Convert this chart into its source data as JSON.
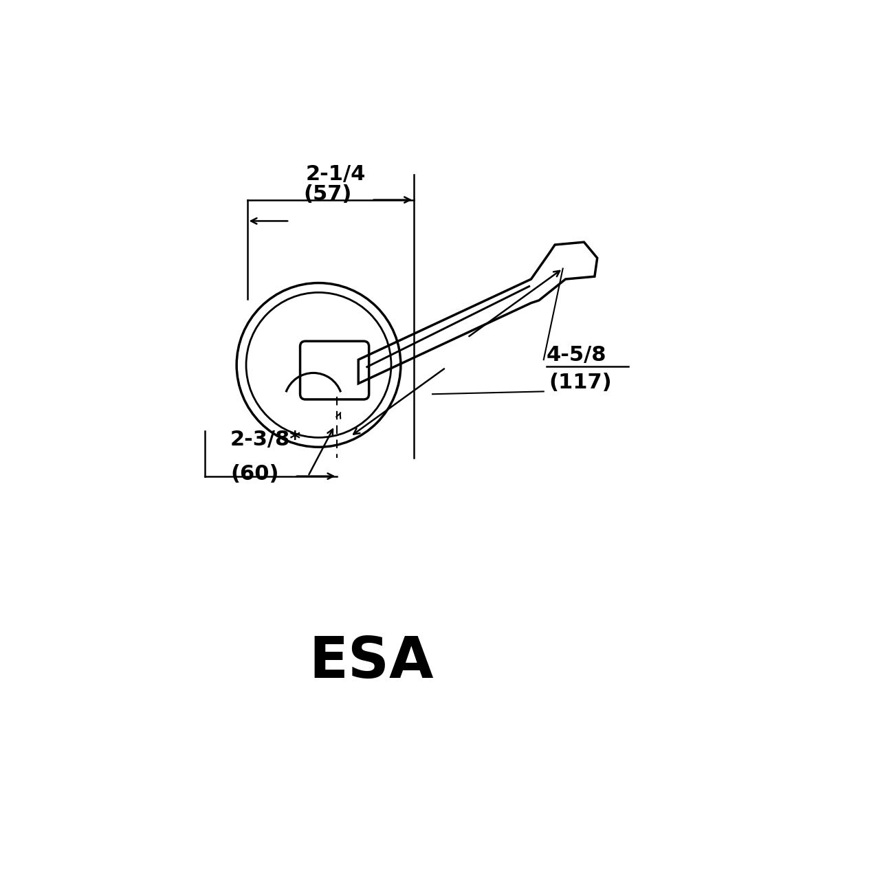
{
  "bg_color": "#ffffff",
  "line_color": "#000000",
  "esa_label": "ESA",
  "esa_fontsize": 60,
  "dim1_label": "2-1/4",
  "dim1_sub": "(57)",
  "dim2_label": "2-3/8*",
  "dim2_sub": "(60)",
  "dim3_label": "4-5/8",
  "dim3_sub": "(117)",
  "dim_fontsize": 22
}
